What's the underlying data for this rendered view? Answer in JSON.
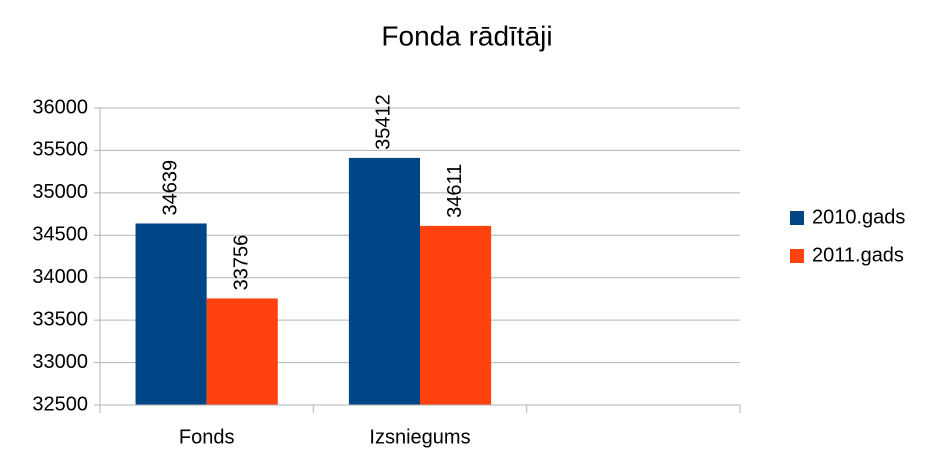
{
  "chart_data": {
    "type": "bar",
    "title": "Fonda rādītāji",
    "categories": [
      "Fonds",
      "Izsniegums",
      null
    ],
    "series": [
      {
        "name": "2010.gads",
        "color": "#004586",
        "values": [
          34639,
          35412,
          null
        ]
      },
      {
        "name": "2011.gads",
        "color": "#ff420e",
        "values": [
          33756,
          34611,
          null
        ]
      }
    ],
    "ylim": [
      32500,
      36000
    ],
    "yticks": [
      32500,
      33000,
      33500,
      34000,
      34500,
      35000,
      35500,
      36000
    ],
    "grid": true,
    "legend": "right"
  }
}
